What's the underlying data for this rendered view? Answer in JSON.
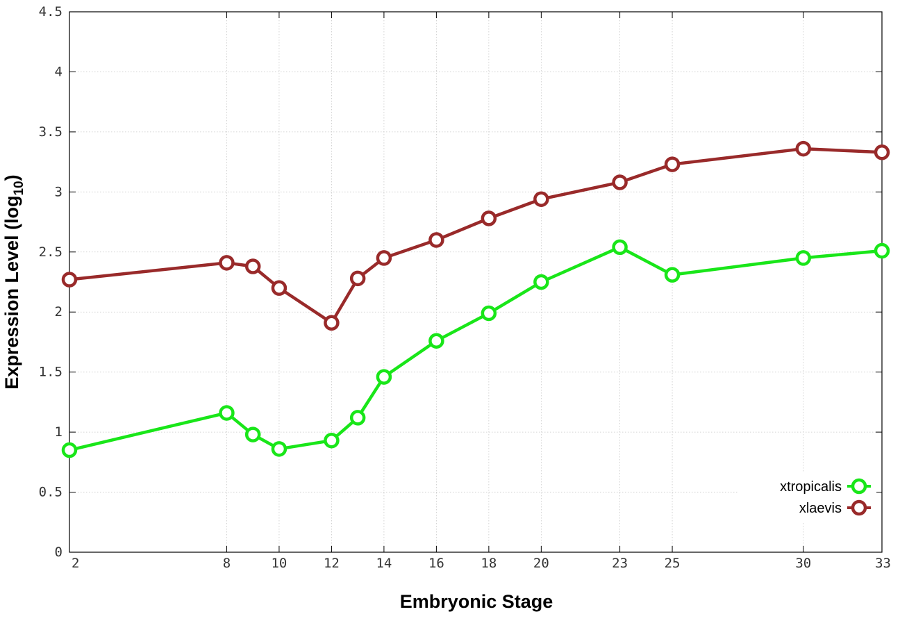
{
  "chart_data": {
    "type": "line",
    "title": "",
    "xlabel": "Embryonic Stage",
    "ylabel": {
      "main": "Expression Level (log",
      "sub": "10",
      "close": ")"
    },
    "x": [
      2,
      8,
      9,
      10,
      12,
      13,
      14,
      16,
      18,
      20,
      23,
      25,
      30,
      33
    ],
    "xticks": [
      "2",
      "8",
      "10",
      "12",
      "14",
      "16",
      "18",
      "20",
      "23",
      "25",
      "30",
      "33"
    ],
    "xlim": [
      2,
      33
    ],
    "yticks": [
      "0",
      "0.5",
      "1",
      "1.5",
      "2",
      "2.5",
      "3",
      "3.5",
      "4",
      "4.5"
    ],
    "ylim": [
      0,
      4.5
    ],
    "grid": true,
    "legend_position": "bottom-right",
    "series": [
      {
        "name": "xtropicalis",
        "color": "#19e619",
        "values": [
          0.85,
          1.16,
          0.98,
          0.86,
          0.93,
          1.12,
          1.46,
          1.76,
          1.99,
          2.25,
          2.54,
          2.31,
          2.45,
          2.51
        ]
      },
      {
        "name": "xlaevis",
        "color": "#992a2a",
        "values": [
          2.27,
          2.41,
          2.38,
          2.2,
          1.91,
          2.28,
          2.45,
          2.6,
          2.78,
          2.94,
          3.08,
          3.23,
          3.36,
          3.33
        ]
      }
    ]
  }
}
